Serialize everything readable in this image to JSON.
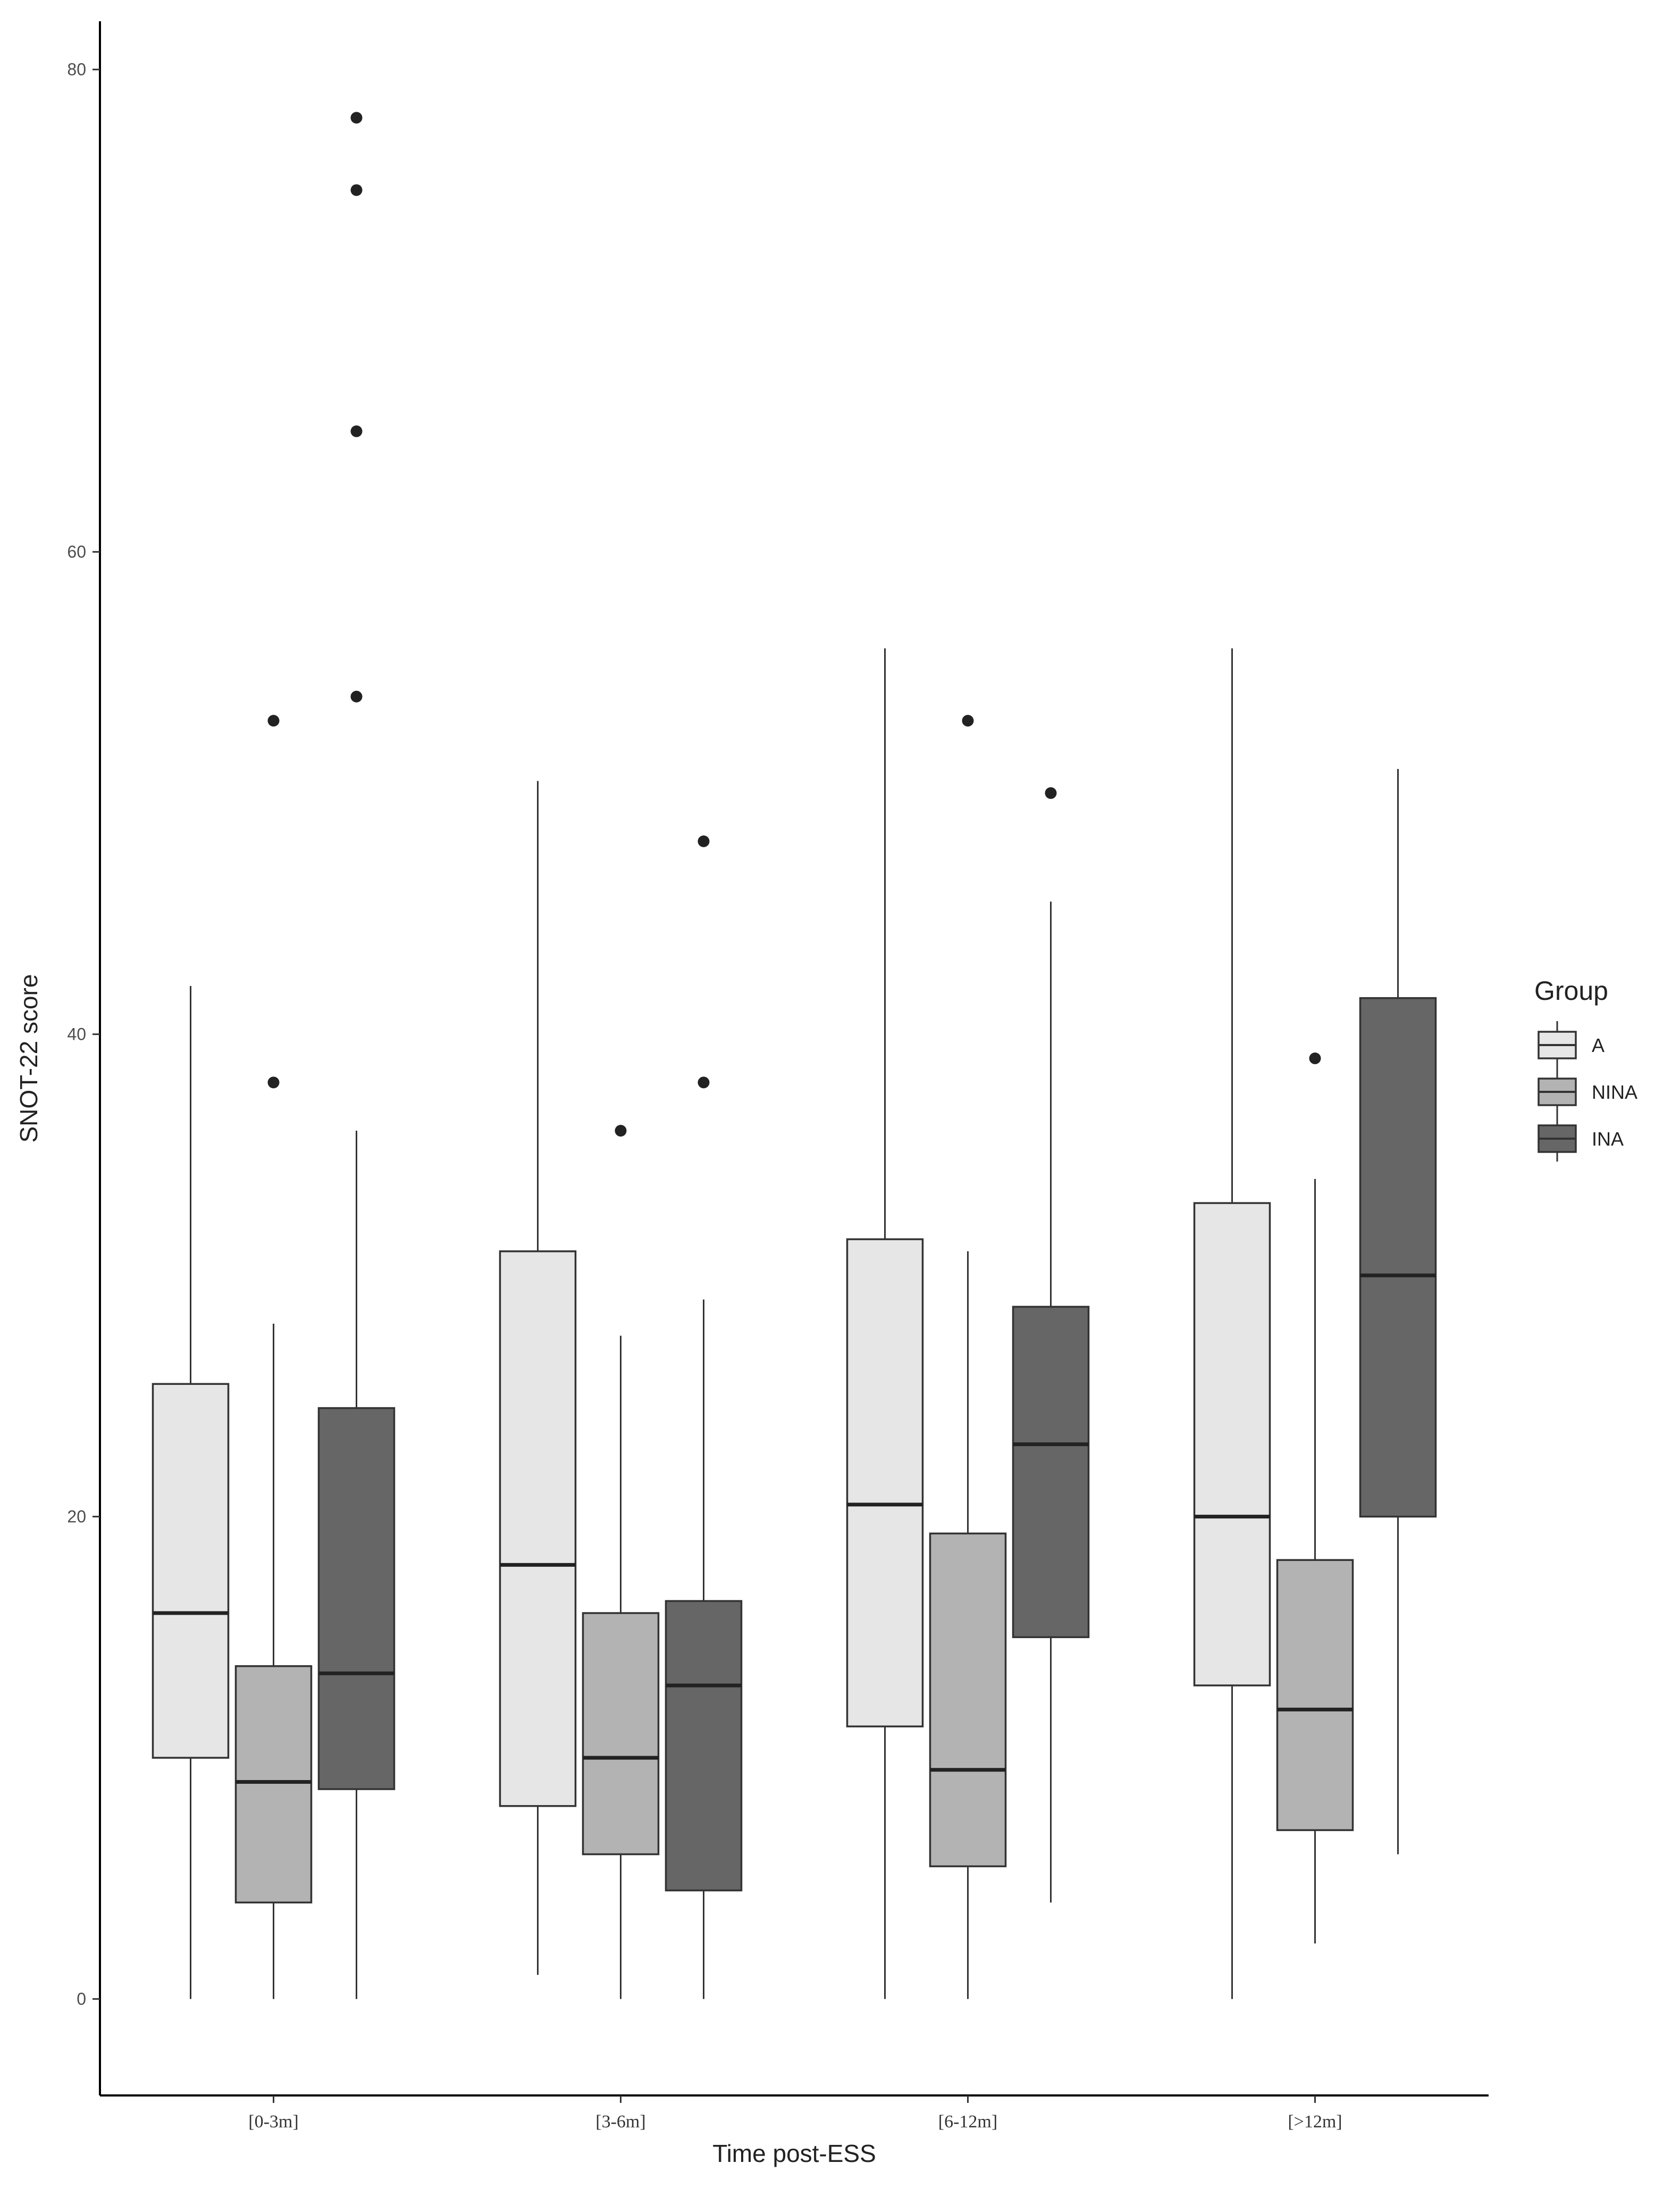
{
  "chart_data": {
    "type": "box",
    "xlabel": "Time post-ESS",
    "ylabel": "SNOT-22 score",
    "ylim": [
      -4,
      82
    ],
    "yticks": [
      0,
      20,
      40,
      60,
      80
    ],
    "categories": [
      "[0-3m]",
      "[3-6m]",
      "[6-12m]",
      "[>12m]"
    ],
    "legend": {
      "title": "Group",
      "placement": "right"
    },
    "series": [
      {
        "name": "A",
        "color": "#e6e6e6",
        "boxes": [
          {
            "min": 0,
            "q1": 10,
            "median": 16,
            "q3": 25.5,
            "max": 42,
            "outliers": []
          },
          {
            "min": 1,
            "q1": 8,
            "median": 18,
            "q3": 31,
            "max": 50.5,
            "outliers": []
          },
          {
            "min": 0,
            "q1": 11.3,
            "median": 20.5,
            "q3": 31.5,
            "max": 56,
            "outliers": []
          },
          {
            "min": 0,
            "q1": 13,
            "median": 20,
            "q3": 33,
            "max": 56,
            "outliers": []
          }
        ]
      },
      {
        "name": "NINA",
        "color": "#b3b3b3",
        "boxes": [
          {
            "min": 0,
            "q1": 4,
            "median": 9,
            "q3": 13.8,
            "max": 28,
            "outliers": [
              38,
              53
            ]
          },
          {
            "min": 0,
            "q1": 6,
            "median": 10,
            "q3": 16,
            "max": 27.5,
            "outliers": [
              36
            ]
          },
          {
            "min": 0,
            "q1": 5.5,
            "median": 9.5,
            "q3": 19.3,
            "max": 31,
            "outliers": [
              53
            ]
          },
          {
            "min": 2.3,
            "q1": 7,
            "median": 12,
            "q3": 18.2,
            "max": 34,
            "outliers": [
              39
            ]
          }
        ]
      },
      {
        "name": "INA",
        "color": "#666666",
        "boxes": [
          {
            "min": 0,
            "q1": 8.7,
            "median": 13.5,
            "q3": 24.5,
            "max": 36,
            "outliers": [
              54,
              65,
              75,
              78
            ]
          },
          {
            "min": 0,
            "q1": 4.5,
            "median": 13,
            "q3": 16.5,
            "max": 29,
            "outliers": [
              38,
              48
            ]
          },
          {
            "min": 4,
            "q1": 15,
            "median": 23,
            "q3": 28.7,
            "max": 45.5,
            "outliers": [
              50
            ]
          },
          {
            "min": 6,
            "q1": 20,
            "median": 30,
            "q3": 41.5,
            "max": 51,
            "outliers": []
          }
        ]
      }
    ]
  }
}
